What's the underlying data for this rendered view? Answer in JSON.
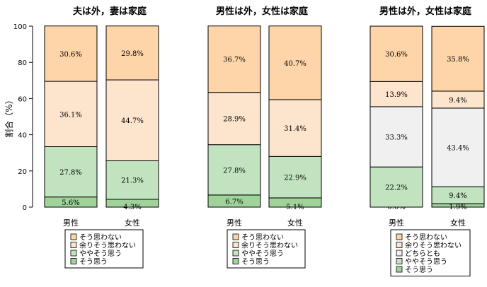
{
  "chart_data": {
    "type": "bar",
    "stacked": true,
    "ylabel": "割合（%）",
    "ylim": [
      0,
      100
    ],
    "yticks": [
      0,
      20,
      40,
      60,
      80,
      100
    ],
    "legend_placement": "below each panel",
    "categories": [
      "男性",
      "女性"
    ],
    "colors": {
      "そう思わない": "#fdd5a9",
      "余りそう思わない": "#fde4cd",
      "どちらとも": "#f0f0f0",
      "ややそう思う": "#c2e3bf",
      "そう思う": "#9fd39a"
    },
    "panels": [
      {
        "title": "夫は外，妻は家庭",
        "legend": [
          "そう思わない",
          "余りそう思わない",
          "ややそう思う",
          "そう思う"
        ],
        "series": [
          {
            "name": "そう思う",
            "values": [
              5.6,
              4.3
            ],
            "labels": [
              "5.6%",
              "4.3%"
            ]
          },
          {
            "name": "ややそう思う",
            "values": [
              27.8,
              21.3
            ],
            "labels": [
              "27.8%",
              "21.3%"
            ]
          },
          {
            "name": "余りそう思わない",
            "values": [
              36.1,
              44.7
            ],
            "labels": [
              "36.1%",
              "44.7%"
            ]
          },
          {
            "name": "そう思わない",
            "values": [
              30.6,
              29.8
            ],
            "labels": [
              "30.6%",
              "29.8%"
            ]
          }
        ]
      },
      {
        "title": "男性は外，女性は家庭",
        "legend": [
          "そう思わない",
          "余りそう思わない",
          "ややそう思う",
          "そう思う"
        ],
        "series": [
          {
            "name": "そう思う",
            "values": [
              6.7,
              5.1
            ],
            "labels": [
              "6.7%",
              "5.1%"
            ]
          },
          {
            "name": "ややそう思う",
            "values": [
              27.8,
              22.9
            ],
            "labels": [
              "27.8%",
              "22.9%"
            ]
          },
          {
            "name": "余りそう思わない",
            "values": [
              28.9,
              31.4
            ],
            "labels": [
              "28.9%",
              "31.4%"
            ]
          },
          {
            "name": "そう思わない",
            "values": [
              36.7,
              40.7
            ],
            "labels": [
              "36.7%",
              "40.7%"
            ]
          }
        ]
      },
      {
        "title": "男性は外，女性は家庭",
        "legend": [
          "そう思わない",
          "余りそう思わない",
          "どちらとも",
          "ややそう思う",
          "そう思う"
        ],
        "series": [
          {
            "name": "そう思う",
            "values": [
              0.0,
              1.9
            ],
            "labels": [
              "0.0%",
              "1.9%"
            ]
          },
          {
            "name": "ややそう思う",
            "values": [
              22.2,
              9.4
            ],
            "labels": [
              "22.2%",
              "9.4%"
            ]
          },
          {
            "name": "どちらとも",
            "values": [
              33.3,
              43.4
            ],
            "labels": [
              "33.3%",
              "43.4%"
            ]
          },
          {
            "name": "余りそう思わない",
            "values": [
              13.9,
              9.4
            ],
            "labels": [
              "13.9%",
              "9.4%"
            ]
          },
          {
            "name": "そう思わない",
            "values": [
              30.6,
              35.8
            ],
            "labels": [
              "30.6%",
              "35.8%"
            ]
          }
        ]
      }
    ]
  }
}
